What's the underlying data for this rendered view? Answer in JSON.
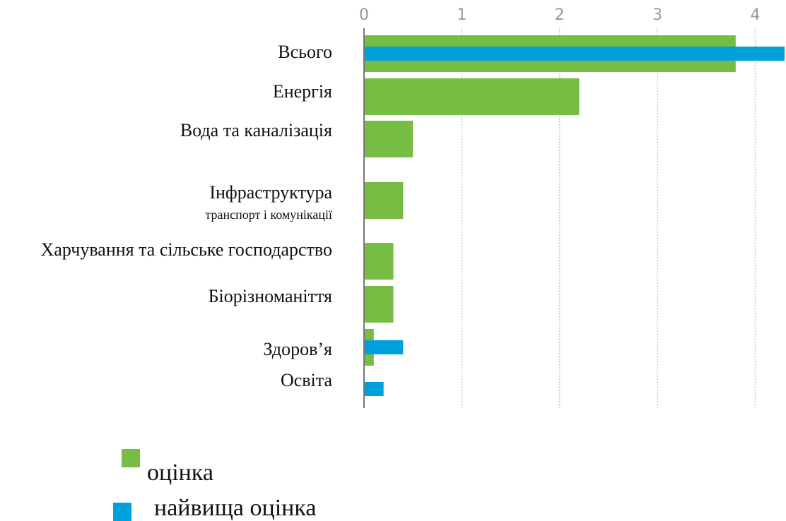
{
  "chart_data": {
    "type": "hbar",
    "categories": [
      "Всього",
      "Енергія",
      "Вода та каналізація",
      "Інфраструктура",
      "Харчування та сільське господарство",
      "Біорізноманіття",
      "Здоров’я",
      "Освіта"
    ],
    "category_sublabels": [
      null,
      null,
      null,
      "транспорт і комунікації",
      null,
      null,
      null,
      null
    ],
    "series": [
      {
        "name": "оцінка",
        "color": "#77bc43",
        "values": [
          3.8,
          2.2,
          0.5,
          0.4,
          0.3,
          0.3,
          0.1,
          null
        ]
      },
      {
        "name": "найвища оцінка",
        "color": "#00a0dc",
        "values": [
          4.3,
          null,
          null,
          null,
          null,
          null,
          0.4,
          0.2
        ]
      }
    ],
    "xlim": [
      0,
      4.3
    ],
    "xticks": [
      0,
      1,
      2,
      3,
      4
    ],
    "grid": true
  }
}
